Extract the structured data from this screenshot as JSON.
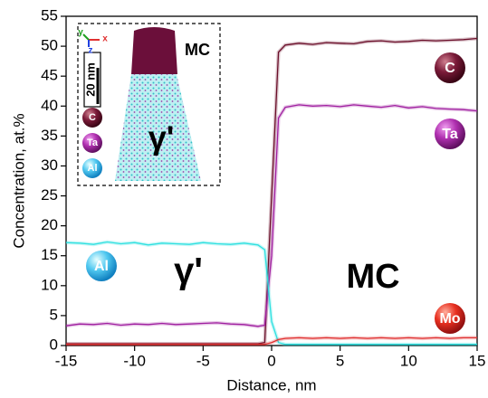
{
  "chart_data": {
    "type": "line",
    "xlabel": "Distance, nm",
    "ylabel": "Concentration, at.%",
    "x": [
      -15,
      -14,
      -13,
      -12,
      -11,
      -10,
      -9,
      -8,
      -7,
      -6,
      -5,
      -4,
      -3,
      -2,
      -1,
      -0.5,
      0,
      0.5,
      1,
      2,
      3,
      4,
      5,
      6,
      7,
      8,
      9,
      10,
      11,
      12,
      13,
      14,
      15
    ],
    "series": [
      {
        "name": "C",
        "color": "#6b0f2a",
        "values": [
          0.3,
          0.3,
          0.3,
          0.3,
          0.3,
          0.3,
          0.3,
          0.3,
          0.3,
          0.3,
          0.3,
          0.3,
          0.3,
          0.3,
          0.3,
          0.5,
          25,
          49,
          50.2,
          50.5,
          50.3,
          50.6,
          50.5,
          50.4,
          50.8,
          50.9,
          50.7,
          50.8,
          51,
          50.9,
          51,
          51.1,
          51.3
        ]
      },
      {
        "name": "Ta",
        "color": "#a020a0",
        "values": [
          3.3,
          3.6,
          3.5,
          3.7,
          3.4,
          3.6,
          3.5,
          3.7,
          3.5,
          3.6,
          3.7,
          3.8,
          3.6,
          3.5,
          3.2,
          3.4,
          15,
          38,
          39.8,
          40.2,
          40,
          40.1,
          39.9,
          40.2,
          40,
          39.8,
          40.1,
          39.7,
          39.9,
          39.6,
          39.5,
          39.4,
          39.2
        ]
      },
      {
        "name": "Al",
        "color": "#2ee0e0",
        "values": [
          17.2,
          17.1,
          16.9,
          17.3,
          17,
          17.2,
          16.8,
          17.1,
          17,
          16.9,
          17.2,
          17,
          16.9,
          17.1,
          16.8,
          16,
          4,
          0.5,
          0.2,
          0.2,
          0.2,
          0.2,
          0.2,
          0.2,
          0.2,
          0.2,
          0.2,
          0.2,
          0.2,
          0.2,
          0.2,
          0.2,
          0.2
        ]
      },
      {
        "name": "Mo",
        "color": "#e03030",
        "values": [
          0.2,
          0.2,
          0.2,
          0.2,
          0.2,
          0.2,
          0.2,
          0.2,
          0.2,
          0.2,
          0.2,
          0.2,
          0.2,
          0.2,
          0.2,
          0.2,
          0.5,
          1,
          1.2,
          1.3,
          1.2,
          1.3,
          1.2,
          1.3,
          1.2,
          1.3,
          1.2,
          1.3,
          1.2,
          1.3,
          1.2,
          1.3,
          1.3
        ]
      }
    ],
    "xlim": [
      -15,
      15
    ],
    "xticks": [
      -15,
      -10,
      -5,
      0,
      5,
      10,
      15
    ],
    "ylim": [
      0,
      55
    ],
    "yticks": [
      0,
      5,
      10,
      15,
      20,
      25,
      30,
      35,
      40,
      45,
      50,
      55
    ],
    "annotations": [
      "γ'",
      "MC"
    ],
    "inset": {
      "labels": [
        "MC",
        "γ'",
        "20 nm",
        "C",
        "Ta",
        "Al",
        "y",
        "z",
        "x"
      ]
    }
  }
}
